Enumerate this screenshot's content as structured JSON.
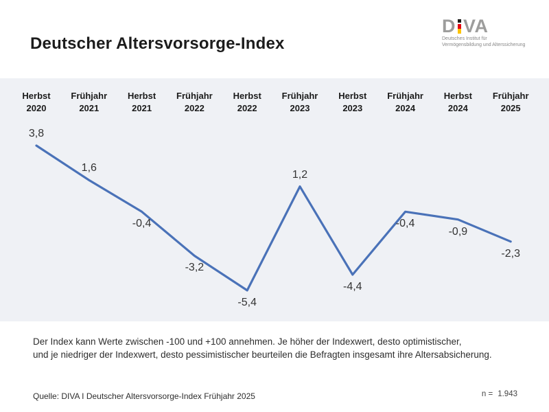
{
  "header": {
    "title": "Deutscher Altersvorsorge-Index",
    "logo": {
      "letter_d": "D",
      "letters_va": "VA",
      "subtitle_line1": "Deutsches Institut für",
      "subtitle_line2": "Vermögensbildung und Alterssicherung",
      "colors": {
        "gray": "#9d9d9c",
        "black": "#1d1d1b",
        "red": "#e30613",
        "gold": "#fdc400"
      }
    }
  },
  "chart_data": {
    "type": "line",
    "title": "Deutscher Altersvorsorge-Index",
    "categories": [
      "Herbst 2020",
      "Frühjahr 2021",
      "Herbst 2021",
      "Frühjahr 2022",
      "Herbst 2022",
      "Frühjahr 2023",
      "Herbst 2023",
      "Frühjahr 2024",
      "Herbst 2024",
      "Frühjahr 2025"
    ],
    "categories_two_line": [
      {
        "season": "Herbst",
        "year": "2020"
      },
      {
        "season": "Frühjahr",
        "year": "2021"
      },
      {
        "season": "Herbst",
        "year": "2021"
      },
      {
        "season": "Frühjahr",
        "year": "2022"
      },
      {
        "season": "Herbst",
        "year": "2022"
      },
      {
        "season": "Frühjahr",
        "year": "2023"
      },
      {
        "season": "Herbst",
        "year": "2023"
      },
      {
        "season": "Frühjahr",
        "year": "2024"
      },
      {
        "season": "Herbst",
        "year": "2024"
      },
      {
        "season": "Frühjahr",
        "year": "2025"
      }
    ],
    "values": [
      3.8,
      1.6,
      -0.4,
      -3.2,
      -5.4,
      1.2,
      -4.4,
      -0.4,
      -0.9,
      -2.3
    ],
    "values_display": [
      "3,8",
      "1,6",
      "-0,4",
      "-3,2",
      "-5,4",
      "1,2",
      "-4,4",
      "-0,4",
      "-0,9",
      "-2,3"
    ],
    "line_color": "#4a72b8",
    "plot_background": "#eff1f5",
    "xlabel": "",
    "ylabel": "",
    "legend": "none",
    "grid": "off",
    "stated_value_range": "-100 bis +100"
  },
  "notes": {
    "line1": "Der Index kann Werte zwischen -100 und +100 annehmen. Je höher der Indexwert, desto optimistischer,",
    "line2": "und je niedriger der Indexwert, desto pessimistischer beurteilen die Befragten insgesamt ihre Altersabsicherung."
  },
  "footer": {
    "source": "Quelle: DIVA I Deutscher Altersvorsorge-Index Frühjahr 2025",
    "sample_label": "n =",
    "sample_value": "1.943"
  }
}
